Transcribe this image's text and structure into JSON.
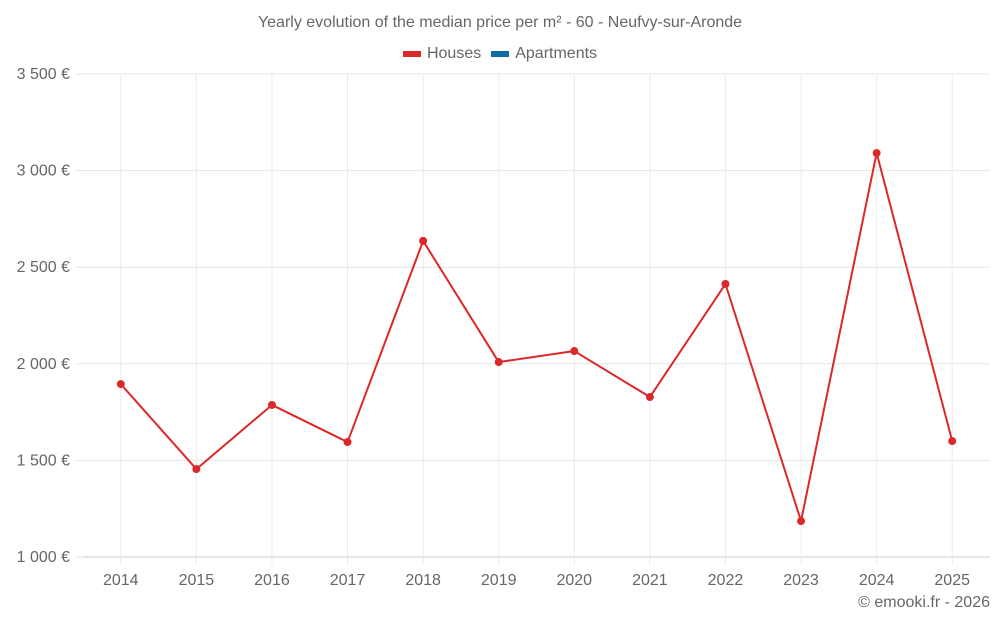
{
  "title": "Yearly evolution of the median price per m² - 60 - Neufvy-sur-Aronde",
  "legend": [
    {
      "label": "Houses",
      "color": "#dc2828"
    },
    {
      "label": "Apartments",
      "color": "#0c6ea4"
    }
  ],
  "copyright": "© emooki.fr - 2026",
  "chart_data": {
    "type": "line",
    "title": "Yearly evolution of the median price per m² - 60 - Neufvy-sur-Aronde",
    "xlabel": "",
    "ylabel": "",
    "categories": [
      "2014",
      "2015",
      "2016",
      "2017",
      "2018",
      "2019",
      "2020",
      "2021",
      "2022",
      "2023",
      "2024",
      "2025"
    ],
    "series": [
      {
        "name": "Houses",
        "color": "#dc2828",
        "values": [
          1895,
          1455,
          1787,
          1595,
          2636,
          2009,
          2066,
          1828,
          2413,
          1186,
          3091,
          1600
        ]
      },
      {
        "name": "Apartments",
        "color": "#0c6ea4",
        "values": []
      }
    ],
    "ylim": [
      1000,
      3500
    ],
    "yticks": [
      1000,
      1500,
      2000,
      2500,
      3000,
      3500
    ],
    "ytick_labels": [
      "1 000 €",
      "1 500 €",
      "2 000 €",
      "2 500 €",
      "3 000 €",
      "3 500 €"
    ],
    "grid": true,
    "legend_position": "top"
  }
}
